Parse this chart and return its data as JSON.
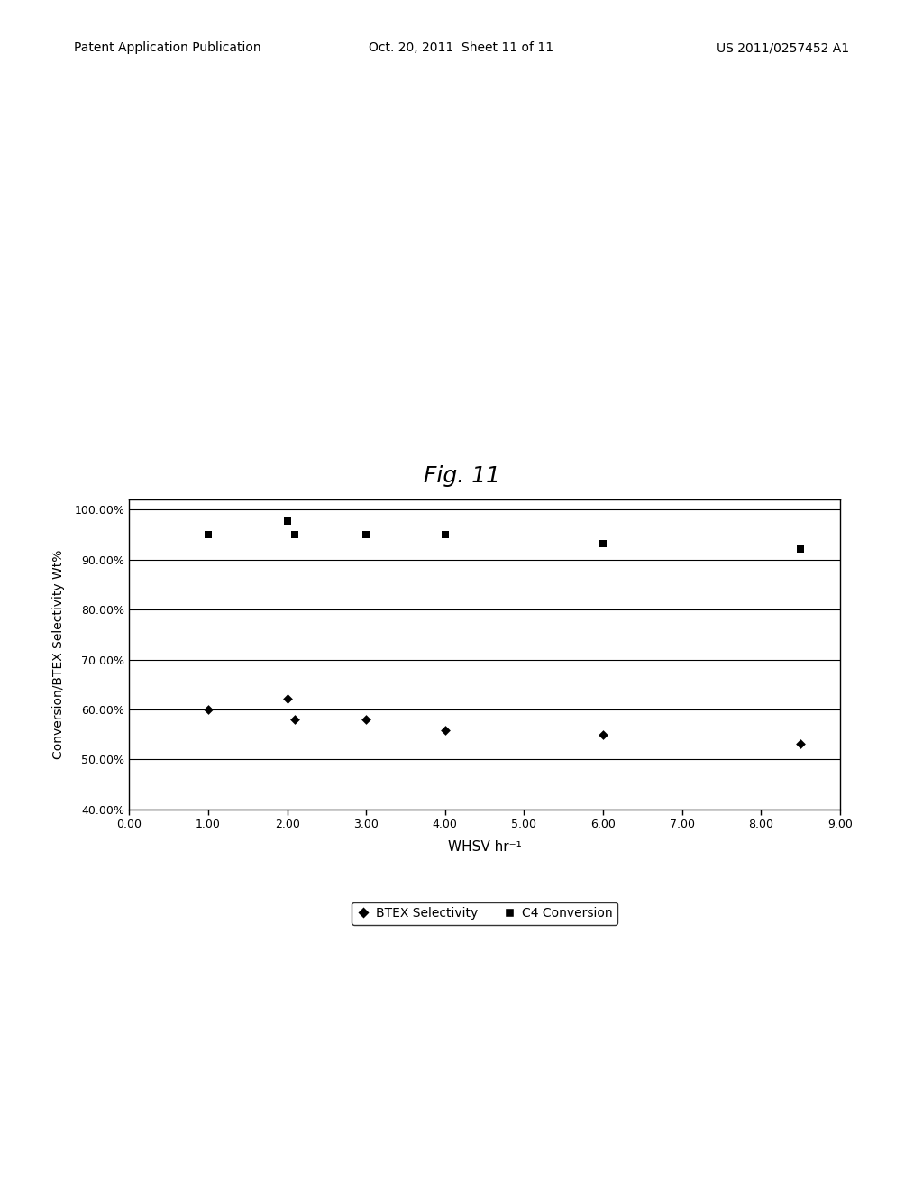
{
  "title": "Fig. 11",
  "xlabel": "WHSV hr⁻¹",
  "ylabel": "Conversion/BTEX Selectivity Wt%",
  "xlim": [
    0.0,
    9.0
  ],
  "ylim": [
    0.4,
    1.02
  ],
  "xticks": [
    0.0,
    1.0,
    2.0,
    3.0,
    4.0,
    5.0,
    6.0,
    7.0,
    8.0,
    9.0
  ],
  "yticks": [
    0.4,
    0.5,
    0.6,
    0.7,
    0.8,
    0.9,
    1.0
  ],
  "ytick_labels": [
    "40.00%",
    "50.00%",
    "60.00%",
    "70.00%",
    "80.00%",
    "90.00%",
    "100.00%"
  ],
  "xtick_labels": [
    "0.00",
    "1.00",
    "2.00",
    "3.00",
    "4.00",
    "5.00",
    "6.00",
    "7.00",
    "8.00",
    "9.00"
  ],
  "btex_x": [
    1.0,
    2.0,
    2.1,
    3.0,
    4.0,
    6.0,
    8.5
  ],
  "btex_y": [
    0.6,
    0.622,
    0.58,
    0.58,
    0.558,
    0.55,
    0.532
  ],
  "c4_x": [
    1.0,
    2.0,
    2.1,
    3.0,
    4.0,
    6.0,
    8.5
  ],
  "c4_y": [
    0.95,
    0.978,
    0.95,
    0.95,
    0.95,
    0.932,
    0.922
  ],
  "header_left": "Patent Application Publication",
  "header_center": "Oct. 20, 2011  Sheet 11 of 11",
  "header_right": "US 2011/0257452 A1",
  "background_color": "#ffffff",
  "plot_bg_color": "#ffffff",
  "grid_color": "#000000",
  "legend_label_btex": "BTEX Selectivity",
  "legend_label_c4": "C4 Conversion"
}
